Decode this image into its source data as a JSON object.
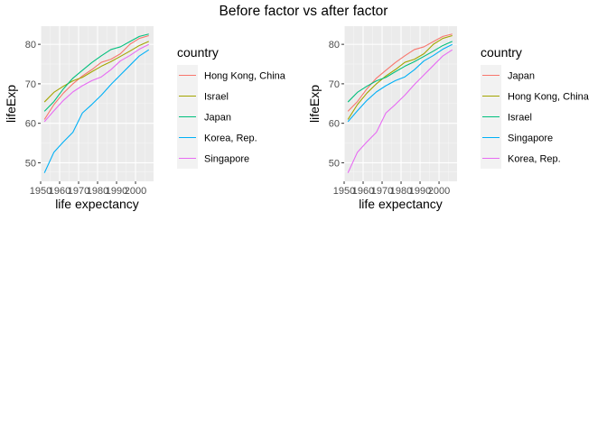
{
  "figure": {
    "title": "Before factor vs after factor"
  },
  "chart_data": [
    {
      "type": "line",
      "xlabel": "life expectancy",
      "ylabel": "lifeExp",
      "xlim": [
        1950,
        2009.5
      ],
      "ylim": [
        45.3,
        84.6
      ],
      "x_ticks": [
        1950,
        1960,
        1970,
        1980,
        1990,
        2000
      ],
      "x_tick_labels": [
        "1950",
        "1960",
        "1970",
        "1980",
        "1990",
        "2000"
      ],
      "y_ticks": [
        50,
        60,
        70,
        80
      ],
      "y_tick_labels": [
        "50",
        "60",
        "70",
        "80"
      ],
      "grid": true,
      "legend": {
        "title": "country",
        "placement": "right"
      },
      "x": [
        1952,
        1957,
        1962,
        1967,
        1972,
        1977,
        1982,
        1987,
        1992,
        1997,
        2002,
        2007
      ],
      "series": [
        {
          "name": "Hong Kong, China",
          "color": "#F8766D",
          "values": [
            60.96,
            64.75,
            67.65,
            70.0,
            72.0,
            73.6,
            75.45,
            76.2,
            77.6,
            80.0,
            81.5,
            82.2
          ]
        },
        {
          "name": "Israel",
          "color": "#A3A500",
          "values": [
            65.39,
            67.84,
            69.39,
            70.75,
            71.63,
            73.06,
            74.45,
            75.6,
            76.93,
            78.27,
            79.7,
            80.75
          ]
        },
        {
          "name": "Japan",
          "color": "#00BF7D",
          "values": [
            63.03,
            65.5,
            68.73,
            71.43,
            73.42,
            75.38,
            77.11,
            78.67,
            79.36,
            80.69,
            82.0,
            82.6
          ]
        },
        {
          "name": "Korea, Rep.",
          "color": "#00B0F6",
          "values": [
            47.45,
            52.68,
            55.29,
            57.72,
            62.61,
            64.77,
            67.12,
            69.81,
            72.24,
            74.65,
            77.05,
            78.62
          ]
        },
        {
          "name": "Singapore",
          "color": "#E76BF3",
          "values": [
            60.4,
            63.18,
            65.8,
            67.95,
            69.52,
            70.8,
            71.76,
            73.56,
            75.79,
            77.16,
            78.77,
            79.97
          ]
        }
      ]
    },
    {
      "type": "line",
      "xlabel": "life expectancy",
      "ylabel": "lifeExp",
      "xlim": [
        1950,
        2009.5
      ],
      "ylim": [
        45.3,
        84.6
      ],
      "x_ticks": [
        1950,
        1960,
        1970,
        1980,
        1990,
        2000
      ],
      "x_tick_labels": [
        "1950",
        "1960",
        "1970",
        "1980",
        "1990",
        "2000"
      ],
      "y_ticks": [
        50,
        60,
        70,
        80
      ],
      "y_tick_labels": [
        "50",
        "60",
        "70",
        "80"
      ],
      "grid": true,
      "legend": {
        "title": "country",
        "placement": "right"
      },
      "x": [
        1952,
        1957,
        1962,
        1967,
        1972,
        1977,
        1982,
        1987,
        1992,
        1997,
        2002,
        2007
      ],
      "series": [
        {
          "name": "Japan",
          "color": "#F8766D",
          "values": [
            63.03,
            65.5,
            68.73,
            71.43,
            73.42,
            75.38,
            77.11,
            78.67,
            79.36,
            80.69,
            82.0,
            82.6
          ]
        },
        {
          "name": "Hong Kong, China",
          "color": "#A3A500",
          "values": [
            60.96,
            64.75,
            67.65,
            70.0,
            72.0,
            73.6,
            75.45,
            76.2,
            77.6,
            80.0,
            81.5,
            82.2
          ]
        },
        {
          "name": "Israel",
          "color": "#00BF7D",
          "values": [
            65.39,
            67.84,
            69.39,
            70.75,
            71.63,
            73.06,
            74.45,
            75.6,
            76.93,
            78.27,
            79.7,
            80.75
          ]
        },
        {
          "name": "Singapore",
          "color": "#00B0F6",
          "values": [
            60.4,
            63.18,
            65.8,
            67.95,
            69.52,
            70.8,
            71.76,
            73.56,
            75.79,
            77.16,
            78.77,
            79.97
          ]
        },
        {
          "name": "Korea, Rep.",
          "color": "#E76BF3",
          "values": [
            47.45,
            52.68,
            55.29,
            57.72,
            62.61,
            64.77,
            67.12,
            69.81,
            72.24,
            74.65,
            77.05,
            78.62
          ]
        }
      ]
    }
  ]
}
